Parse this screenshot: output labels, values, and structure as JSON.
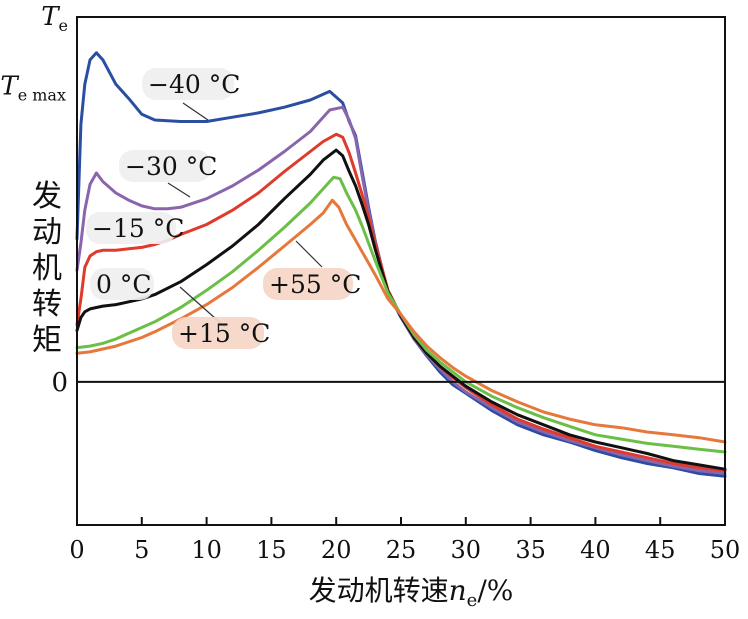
{
  "chart_data": {
    "type": "line",
    "title": "",
    "xlabel_prefix": "发动机转速",
    "xlabel_var": "n",
    "xlabel_sub": "e",
    "xlabel_suffix": "/%",
    "ylabel_chars": [
      "发",
      "动",
      "机",
      "转",
      "矩"
    ],
    "xlim": [
      0,
      50
    ],
    "ylim": [
      -1.0,
      2.55
    ],
    "x_ticks": [
      0,
      5,
      10,
      15,
      20,
      25,
      30,
      35,
      40,
      45,
      50
    ],
    "x_tick_labels": [
      "0",
      "5",
      "10",
      "15",
      "20",
      "25",
      "30",
      "35",
      "40",
      "45",
      "50"
    ],
    "y_marks": {
      "te_var": "T",
      "te_sub": "e",
      "te_value": 2.55,
      "temax_var": "T",
      "temax_sub": "e max",
      "temax_value": 2.05,
      "zero_label": "0",
      "zero_value": 0
    },
    "grid": false,
    "series": [
      {
        "name": "−40 °C",
        "color": "#2b4ea3",
        "label_bg": "#efefef",
        "x": [
          0,
          0.3,
          0.6,
          1.0,
          1.5,
          2.0,
          3.0,
          4.0,
          5.0,
          6.0,
          8.0,
          10.0,
          12.0,
          14.0,
          16.0,
          18.0,
          19.5,
          20.5,
          21.0,
          21.5,
          22.0,
          22.5,
          23.0,
          24.0,
          25.0,
          26.0,
          27.0,
          28.0,
          29.0,
          30.0,
          32.0,
          34.0,
          36.0,
          38.0,
          40.0,
          42.0,
          44.0,
          46.0,
          48.0,
          50.0
        ],
        "y": [
          1.0,
          1.8,
          2.08,
          2.25,
          2.3,
          2.25,
          2.08,
          1.98,
          1.87,
          1.83,
          1.82,
          1.82,
          1.85,
          1.88,
          1.92,
          1.97,
          2.03,
          1.95,
          1.82,
          1.72,
          1.47,
          1.22,
          0.99,
          0.62,
          0.45,
          0.3,
          0.18,
          0.07,
          -0.02,
          -0.08,
          -0.2,
          -0.3,
          -0.37,
          -0.42,
          -0.48,
          -0.53,
          -0.57,
          -0.6,
          -0.64,
          -0.66
        ]
      },
      {
        "name": "−30 °C",
        "color": "#8a64ad",
        "label_bg": "#efefef",
        "x": [
          0,
          0.3,
          0.6,
          1.0,
          1.5,
          2.0,
          3.0,
          4.0,
          5.0,
          6.0,
          7.0,
          8.0,
          10.0,
          12.0,
          14.0,
          16.0,
          18.0,
          19.5,
          20.5,
          21.0,
          21.5,
          22.0,
          22.5,
          23.0,
          24.0,
          25.0,
          26.0,
          27.0,
          28.0,
          29.0,
          30.0,
          32.0,
          34.0,
          36.0,
          38.0,
          40.0,
          42.0,
          44.0,
          46.0,
          48.0,
          50.0
        ],
        "y": [
          0.78,
          0.97,
          1.2,
          1.38,
          1.46,
          1.4,
          1.32,
          1.27,
          1.23,
          1.21,
          1.21,
          1.22,
          1.28,
          1.37,
          1.48,
          1.61,
          1.75,
          1.9,
          1.92,
          1.83,
          1.7,
          1.44,
          1.2,
          0.98,
          0.62,
          0.46,
          0.3,
          0.19,
          0.09,
          0.0,
          -0.07,
          -0.18,
          -0.28,
          -0.35,
          -0.41,
          -0.46,
          -0.51,
          -0.55,
          -0.59,
          -0.62,
          -0.64
        ]
      },
      {
        "name": "−15 °C",
        "color": "#e03a2c",
        "label_bg": "#efefef",
        "x": [
          0,
          0.3,
          0.6,
          1.0,
          1.5,
          2.0,
          3.0,
          4.0,
          5.0,
          6.0,
          7.0,
          8.0,
          10.0,
          12.0,
          14.0,
          16.0,
          18.0,
          19.0,
          20.0,
          20.5,
          21.0,
          21.5,
          22.0,
          22.5,
          23.0,
          24.0,
          25.0,
          26.0,
          27.0,
          28.0,
          29.0,
          30.0,
          32.0,
          34.0,
          36.0,
          38.0,
          40.0,
          42.0,
          44.0,
          46.0,
          48.0,
          50.0
        ],
        "y": [
          0.4,
          0.58,
          0.8,
          0.88,
          0.91,
          0.92,
          0.92,
          0.93,
          0.94,
          0.96,
          0.99,
          1.03,
          1.1,
          1.2,
          1.32,
          1.47,
          1.61,
          1.68,
          1.73,
          1.71,
          1.6,
          1.46,
          1.31,
          1.15,
          0.97,
          0.64,
          0.46,
          0.31,
          0.2,
          0.11,
          0.03,
          -0.04,
          -0.16,
          -0.26,
          -0.33,
          -0.39,
          -0.45,
          -0.49,
          -0.53,
          -0.57,
          -0.6,
          -0.62
        ]
      },
      {
        "name": "0 °C",
        "color": "#111111",
        "label_bg": "#efefef",
        "x": [
          0,
          0.3,
          0.6,
          1.0,
          1.5,
          2.0,
          3.0,
          4.0,
          5.0,
          6.0,
          8.0,
          10.0,
          12.0,
          14.0,
          16.0,
          18.0,
          19.0,
          20.0,
          20.5,
          21.0,
          21.5,
          22.0,
          22.5,
          23.0,
          24.0,
          25.0,
          26.0,
          27.0,
          28.0,
          29.0,
          30.0,
          32.0,
          34.0,
          36.0,
          38.0,
          40.0,
          42.0,
          44.0,
          46.0,
          48.0,
          50.0
        ],
        "y": [
          0.36,
          0.45,
          0.49,
          0.51,
          0.52,
          0.53,
          0.54,
          0.56,
          0.58,
          0.61,
          0.7,
          0.82,
          0.95,
          1.1,
          1.28,
          1.45,
          1.55,
          1.62,
          1.58,
          1.47,
          1.37,
          1.24,
          1.1,
          0.93,
          0.63,
          0.46,
          0.31,
          0.2,
          0.11,
          0.04,
          -0.03,
          -0.14,
          -0.23,
          -0.3,
          -0.37,
          -0.42,
          -0.46,
          -0.5,
          -0.55,
          -0.58,
          -0.61
        ]
      },
      {
        "name": "+15 °C",
        "color": "#6bbf47",
        "label_bg": "#f6d6c8",
        "x": [
          0,
          1.0,
          2.0,
          3.0,
          4.0,
          5.0,
          6.0,
          8.0,
          10.0,
          12.0,
          14.0,
          16.0,
          18.0,
          19.0,
          19.8,
          20.3,
          20.8,
          21.5,
          22.0,
          22.5,
          23.0,
          24.0,
          25.0,
          26.0,
          27.0,
          28.0,
          29.0,
          30.0,
          32.0,
          34.0,
          36.0,
          38.0,
          40.0,
          42.0,
          44.0,
          46.0,
          48.0,
          50.0
        ],
        "y": [
          0.24,
          0.25,
          0.27,
          0.3,
          0.34,
          0.38,
          0.42,
          0.52,
          0.64,
          0.77,
          0.92,
          1.08,
          1.25,
          1.35,
          1.43,
          1.42,
          1.32,
          1.2,
          1.09,
          0.97,
          0.85,
          0.62,
          0.47,
          0.33,
          0.22,
          0.14,
          0.07,
          0.0,
          -0.1,
          -0.18,
          -0.25,
          -0.31,
          -0.37,
          -0.4,
          -0.43,
          -0.45,
          -0.47,
          -0.49
        ]
      },
      {
        "name": "+55 °C",
        "color": "#e6783c",
        "label_bg": "#f6d6c8",
        "x": [
          0,
          1.0,
          2.0,
          3.0,
          4.0,
          5.0,
          6.0,
          8.0,
          10.0,
          12.0,
          14.0,
          16.0,
          18.0,
          19.0,
          19.7,
          20.2,
          20.8,
          21.5,
          22.0,
          22.5,
          23.0,
          24.0,
          25.0,
          26.0,
          27.0,
          28.0,
          29.0,
          30.0,
          32.0,
          34.0,
          36.0,
          38.0,
          40.0,
          42.0,
          44.0,
          46.0,
          48.0,
          50.0
        ],
        "y": [
          0.2,
          0.21,
          0.23,
          0.25,
          0.28,
          0.31,
          0.35,
          0.44,
          0.54,
          0.66,
          0.8,
          0.95,
          1.1,
          1.18,
          1.27,
          1.22,
          1.1,
          0.99,
          0.91,
          0.83,
          0.75,
          0.58,
          0.47,
          0.35,
          0.25,
          0.17,
          0.1,
          0.04,
          -0.06,
          -0.14,
          -0.21,
          -0.26,
          -0.3,
          -0.32,
          -0.35,
          -0.37,
          -0.39,
          -0.42
        ]
      }
    ]
  }
}
